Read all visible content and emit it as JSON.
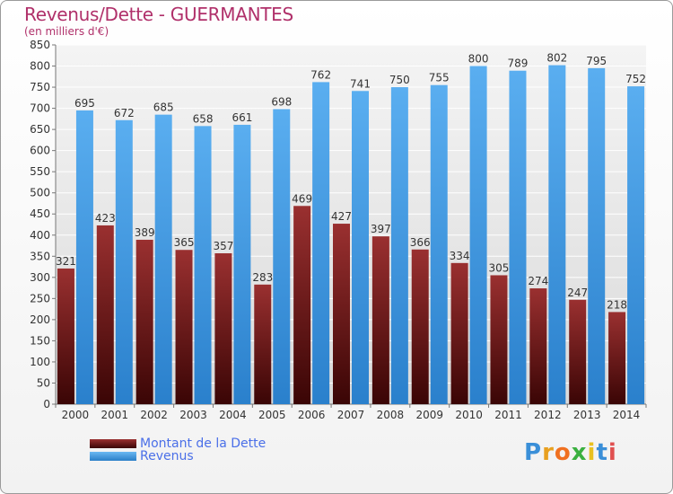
{
  "header": {
    "title": "Revenus/Dette - GUERMANTES",
    "subtitle": "(en milliers d'€)"
  },
  "legend": [
    {
      "label": "Montant de la Dette",
      "color": "#7a1a1a"
    },
    {
      "label": "Revenus",
      "color": "#4a9fe6"
    }
  ],
  "logo": {
    "text": "Proxiti"
  },
  "chart_data": {
    "type": "bar",
    "title": "Revenus/Dette - GUERMANTES",
    "subtitle": "(en milliers d'€)",
    "xlabel": "",
    "ylabel": "",
    "ylim": [
      0,
      850
    ],
    "ytick_step": 50,
    "grid": true,
    "legend_position": "bottom-left",
    "categories": [
      "2000",
      "2001",
      "2002",
      "2003",
      "2004",
      "2005",
      "2006",
      "2007",
      "2008",
      "2009",
      "2010",
      "2011",
      "2012",
      "2013",
      "2014"
    ],
    "series": [
      {
        "name": "Montant de la Dette",
        "color": "#7a1a1a",
        "values": [
          321,
          423,
          389,
          365,
          357,
          283,
          469,
          427,
          397,
          366,
          334,
          305,
          274,
          247,
          218
        ]
      },
      {
        "name": "Revenus",
        "color": "#4a9fe6",
        "values": [
          695,
          672,
          685,
          658,
          661,
          698,
          762,
          741,
          750,
          755,
          800,
          789,
          802,
          795,
          752
        ]
      }
    ]
  }
}
